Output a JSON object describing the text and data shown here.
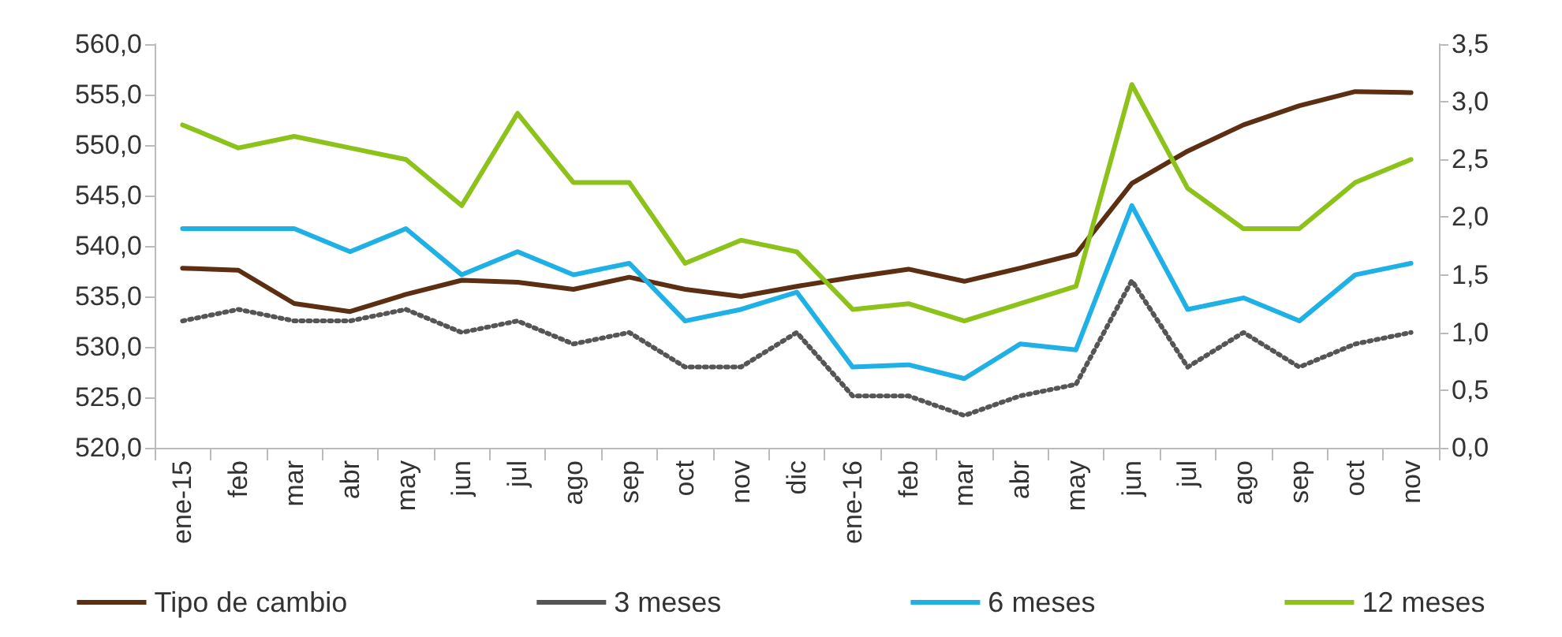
{
  "chart_data": {
    "type": "line",
    "categories": [
      "ene-15",
      "feb",
      "mar",
      "abr",
      "may",
      "jun",
      "jul",
      "ago",
      "sep",
      "oct",
      "nov",
      "dic",
      "ene-16",
      "feb",
      "mar",
      "abr",
      "may",
      "jun",
      "jul",
      "ago",
      "sep",
      "oct",
      "nov"
    ],
    "series": [
      {
        "name": "Tipo de cambio",
        "color": "#5c2e12",
        "values": [
          537.8,
          537.6,
          534.3,
          533.5,
          535.2,
          536.6,
          536.4,
          535.7,
          536.9,
          535.7,
          535.0,
          536.0,
          536.9,
          537.7,
          536.5,
          537.8,
          539.2,
          546.2,
          549.4,
          552.0,
          553.9,
          555.3,
          555.2
        ]
      },
      {
        "name": "3 meses",
        "color": "#555555",
        "axis": "y2",
        "line_style": "dotted",
        "values": [
          1.1,
          1.2,
          1.1,
          1.1,
          1.2,
          1.0,
          1.1,
          0.9,
          1.0,
          0.7,
          0.7,
          1.0,
          0.45,
          0.45,
          0.28,
          0.45,
          0.55,
          1.45,
          0.7,
          1.0,
          0.7,
          0.9,
          1.0
        ]
      },
      {
        "name": "6 meses",
        "color": "#1fb0e6",
        "axis": "y2",
        "values": [
          1.9,
          1.9,
          1.9,
          1.7,
          1.9,
          1.5,
          1.7,
          1.5,
          1.6,
          1.1,
          1.2,
          1.35,
          0.7,
          0.72,
          0.6,
          0.9,
          0.85,
          2.1,
          1.2,
          1.3,
          1.1,
          1.5,
          1.6
        ]
      },
      {
        "name": "12 meses",
        "color": "#8cc219",
        "axis": "y2",
        "values": [
          2.8,
          2.6,
          2.7,
          2.6,
          2.5,
          2.1,
          2.9,
          2.3,
          2.3,
          1.6,
          1.8,
          1.7,
          1.2,
          1.25,
          1.1,
          1.25,
          1.4,
          3.15,
          2.25,
          1.9,
          1.9,
          2.3,
          2.5
        ]
      }
    ],
    "ylim": [
      520,
      560
    ],
    "yticks": [
      {
        "value": 520,
        "label": "520,0"
      },
      {
        "value": 525,
        "label": "525,0"
      },
      {
        "value": 530,
        "label": "530,0"
      },
      {
        "value": 535,
        "label": "535,0"
      },
      {
        "value": 540,
        "label": "540,0"
      },
      {
        "value": 545,
        "label": "545,0"
      },
      {
        "value": 550,
        "label": "550,0"
      },
      {
        "value": 555,
        "label": "555,0"
      },
      {
        "value": 560,
        "label": "560,0"
      }
    ],
    "y2lim": [
      0,
      3.5
    ],
    "y2ticks": [
      {
        "value": 0,
        "label": "0,0"
      },
      {
        "value": 0.5,
        "label": "0,5"
      },
      {
        "value": 1,
        "label": "1,0"
      },
      {
        "value": 1.5,
        "label": "1,5"
      },
      {
        "value": 2,
        "label": "2,0"
      },
      {
        "value": 2.5,
        "label": "2,5"
      },
      {
        "value": 3,
        "label": "3,0"
      },
      {
        "value": 3.5,
        "label": "3,5"
      }
    ],
    "legend": "bottom",
    "grid": false,
    "marker": "none",
    "line_style": "solid"
  }
}
